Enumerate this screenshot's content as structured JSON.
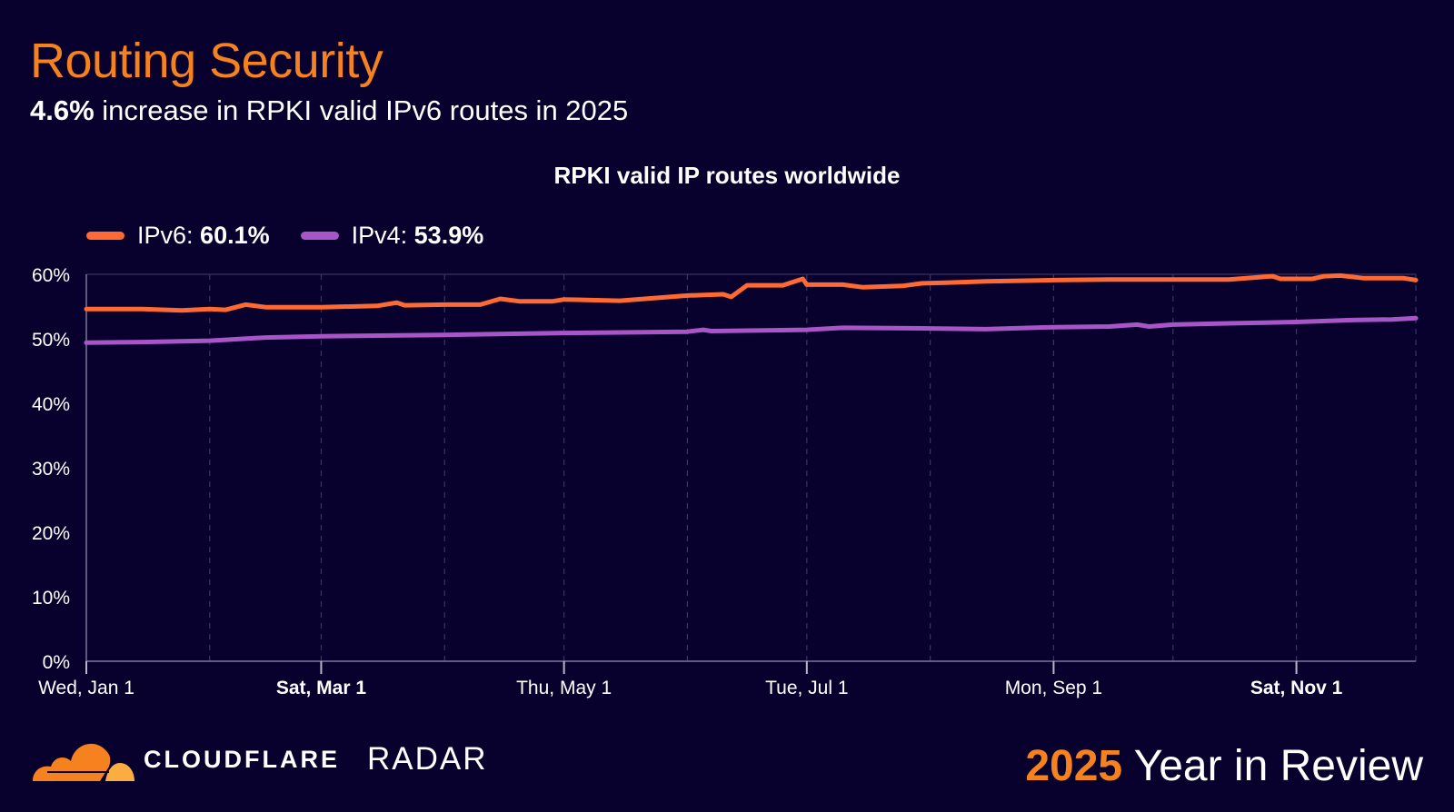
{
  "header": {
    "title": "Routing Security",
    "subtitle_highlight": "4.6%",
    "subtitle_rest": " increase in RPKI valid IPv6 routes in 2025"
  },
  "chart_data": {
    "type": "line",
    "title": "RPKI valid IP routes worldwide",
    "xlabel": "",
    "ylabel": "",
    "ylim": [
      0,
      60
    ],
    "xlim": [
      "2025-01-01",
      "2025-12-01"
    ],
    "y_ticks": [
      0,
      10,
      20,
      30,
      40,
      50,
      60
    ],
    "y_tick_labels": [
      "0%",
      "10%",
      "20%",
      "30%",
      "40%",
      "50%",
      "60%"
    ],
    "x_ticks": [
      {
        "date": "2025-01-01",
        "label": "Wed, Jan 1",
        "bold": false
      },
      {
        "date": "2025-03-01",
        "label": "Sat, Mar 1",
        "bold": true
      },
      {
        "date": "2025-05-01",
        "label": "Thu, May 1",
        "bold": false
      },
      {
        "date": "2025-07-01",
        "label": "Tue, Jul 1",
        "bold": false
      },
      {
        "date": "2025-09-01",
        "label": "Mon, Sep 1",
        "bold": false
      },
      {
        "date": "2025-11-01",
        "label": "Sat, Nov 1",
        "bold": true
      }
    ],
    "grid": "vertical dashed at month starts",
    "legend_position": "top-left",
    "series": [
      {
        "name": "IPv6",
        "legend_value": "60.1%",
        "color": "#ff6933",
        "points": [
          [
            "2025-01-01",
            54.6
          ],
          [
            "2025-01-15",
            54.6
          ],
          [
            "2025-01-25",
            54.4
          ],
          [
            "2025-02-01",
            54.6
          ],
          [
            "2025-02-05",
            54.5
          ],
          [
            "2025-02-10",
            55.3
          ],
          [
            "2025-02-15",
            54.9
          ],
          [
            "2025-03-01",
            54.9
          ],
          [
            "2025-03-15",
            55.1
          ],
          [
            "2025-03-20",
            55.6
          ],
          [
            "2025-03-22",
            55.2
          ],
          [
            "2025-04-01",
            55.3
          ],
          [
            "2025-04-10",
            55.3
          ],
          [
            "2025-04-15",
            56.2
          ],
          [
            "2025-04-20",
            55.8
          ],
          [
            "2025-04-28",
            55.8
          ],
          [
            "2025-05-01",
            56.1
          ],
          [
            "2025-05-15",
            55.9
          ],
          [
            "2025-06-01",
            56.7
          ],
          [
            "2025-06-10",
            56.9
          ],
          [
            "2025-06-12",
            56.5
          ],
          [
            "2025-06-16",
            58.3
          ],
          [
            "2025-06-25",
            58.3
          ],
          [
            "2025-06-30",
            59.3
          ],
          [
            "2025-07-01",
            58.4
          ],
          [
            "2025-07-10",
            58.4
          ],
          [
            "2025-07-15",
            58.0
          ],
          [
            "2025-07-25",
            58.2
          ],
          [
            "2025-07-30",
            58.6
          ],
          [
            "2025-08-05",
            58.7
          ],
          [
            "2025-08-15",
            58.9
          ],
          [
            "2025-09-01",
            59.1
          ],
          [
            "2025-09-15",
            59.2
          ],
          [
            "2025-10-01",
            59.2
          ],
          [
            "2025-10-15",
            59.2
          ],
          [
            "2025-10-26",
            59.7
          ],
          [
            "2025-10-28",
            59.3
          ],
          [
            "2025-11-05",
            59.3
          ],
          [
            "2025-11-08",
            59.7
          ],
          [
            "2025-11-12",
            59.8
          ],
          [
            "2025-11-18",
            59.4
          ],
          [
            "2025-11-28",
            59.4
          ],
          [
            "2025-12-01",
            59.1
          ]
        ]
      },
      {
        "name": "IPv4",
        "legend_value": "53.9%",
        "color": "#a855c7",
        "points": [
          [
            "2025-01-01",
            49.4
          ],
          [
            "2025-01-15",
            49.5
          ],
          [
            "2025-02-01",
            49.7
          ],
          [
            "2025-02-15",
            50.2
          ],
          [
            "2025-03-01",
            50.4
          ],
          [
            "2025-04-01",
            50.6
          ],
          [
            "2025-05-01",
            50.9
          ],
          [
            "2025-06-01",
            51.1
          ],
          [
            "2025-06-05",
            51.4
          ],
          [
            "2025-06-07",
            51.2
          ],
          [
            "2025-07-01",
            51.4
          ],
          [
            "2025-07-10",
            51.7
          ],
          [
            "2025-08-01",
            51.6
          ],
          [
            "2025-08-15",
            51.5
          ],
          [
            "2025-09-01",
            51.8
          ],
          [
            "2025-09-15",
            51.9
          ],
          [
            "2025-09-22",
            52.2
          ],
          [
            "2025-09-25",
            51.9
          ],
          [
            "2025-10-01",
            52.2
          ],
          [
            "2025-10-15",
            52.4
          ],
          [
            "2025-11-01",
            52.6
          ],
          [
            "2025-11-15",
            52.9
          ],
          [
            "2025-11-25",
            53.0
          ],
          [
            "2025-12-01",
            53.2
          ]
        ]
      }
    ]
  },
  "footer": {
    "brand": "CLOUDFLARE",
    "product": "RADAR",
    "year": "2025",
    "tagline": " Year in Review",
    "logo_colors": [
      "#f6821f",
      "#fbad41"
    ]
  }
}
